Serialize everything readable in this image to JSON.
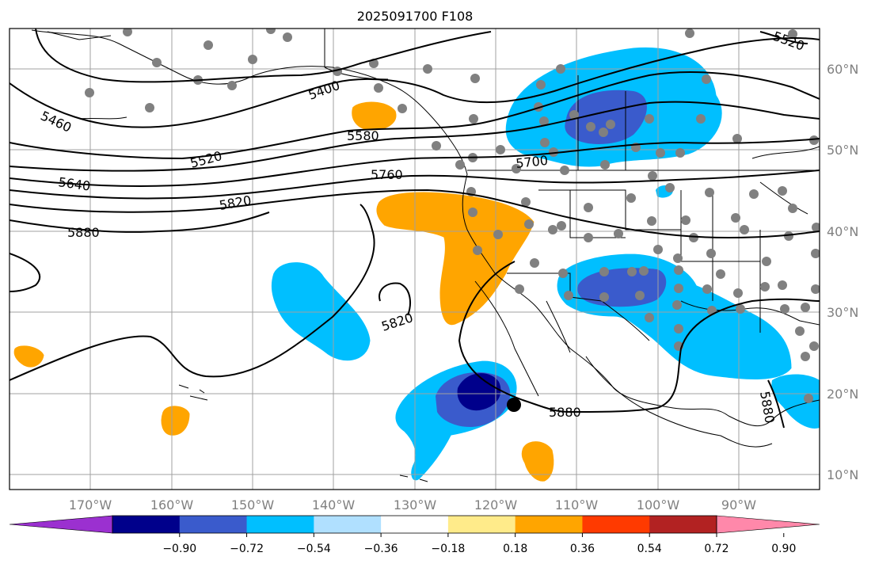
{
  "title": "2025091700 F108",
  "map": {
    "lon_labels": [
      "170°W",
      "160°W",
      "150°W",
      "140°W",
      "130°W",
      "120°W",
      "110°W",
      "100°W",
      "90°W"
    ],
    "lat_labels": [
      "60°N",
      "50°N",
      "40°N",
      "30°N",
      "20°N",
      "10°N"
    ],
    "contour_labels": [
      "5400",
      "5460",
      "5520",
      "5520",
      "5580",
      "5640",
      "5700",
      "5760",
      "5820",
      "5820",
      "5880",
      "5880",
      "5880"
    ],
    "center_marker": "storm-center-dot"
  },
  "colorbar": {
    "colors": [
      "#9b30d0",
      "#00008b",
      "#3a5bcc",
      "#00bfff",
      "#b0e0ff",
      "#ffffff",
      "#ffeb8a",
      "#ffa500",
      "#ff3a00",
      "#b22222",
      "#ff88aa"
    ],
    "tick_labels": [
      "−0.90",
      "−0.72",
      "−0.54",
      "−0.36",
      "−0.18",
      "0.18",
      "0.36",
      "0.54",
      "0.72",
      "0.90"
    ]
  },
  "colors": {
    "blue_light": "#00bfff",
    "blue_mid": "#3a5bcc",
    "blue_dark": "#00008b",
    "orange": "#ffa500",
    "station_gray": "#808080"
  }
}
